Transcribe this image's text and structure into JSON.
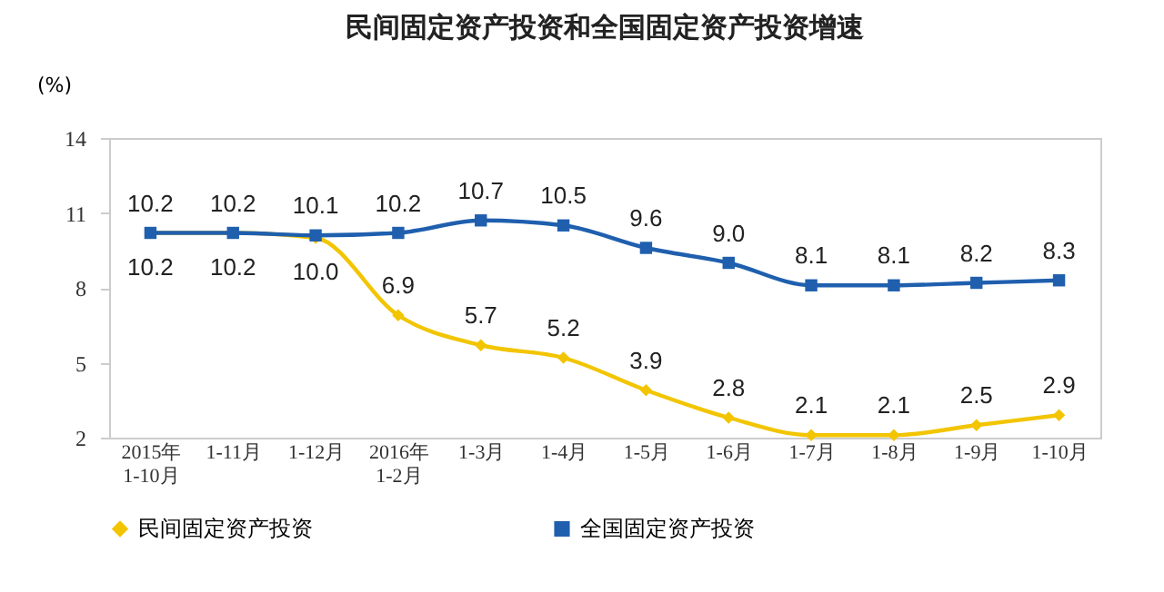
{
  "chart_data": {
    "type": "line",
    "title": "民间固定资产投资和全国固定资产投资增速",
    "ylabel": "(%)",
    "categories": [
      "2015年\n1-10月",
      "1-11月",
      "1-12月",
      "2016年\n1-2月",
      "1-3月",
      "1-4月",
      "1-5月",
      "1-6月",
      "1-7月",
      "1-8月",
      "1-9月",
      "1-10月"
    ],
    "series": [
      {
        "name": "民间固定资产投资",
        "color": "#f2c500",
        "marker": "diamond",
        "values": [
          10.2,
          10.2,
          10.0,
          6.9,
          5.7,
          5.2,
          3.9,
          2.8,
          2.1,
          2.1,
          2.5,
          2.9
        ],
        "value_labels": [
          "10.2",
          "10.2",
          "10.0",
          "6.9",
          "5.7",
          "5.2",
          "3.9",
          "2.8",
          "2.1",
          "2.1",
          "2.5",
          "2.9"
        ]
      },
      {
        "name": "全国固定资产投资",
        "color": "#1f5fae",
        "marker": "square",
        "values": [
          10.2,
          10.2,
          10.1,
          10.2,
          10.7,
          10.5,
          9.6,
          9.0,
          8.1,
          8.1,
          8.2,
          8.3
        ],
        "value_labels": [
          "10.2",
          "10.2",
          "10.1",
          "10.2",
          "10.7",
          "10.5",
          "9.6",
          "9.0",
          "8.1",
          "8.1",
          "8.2",
          "8.3"
        ]
      }
    ],
    "ylim": [
      2,
      14
    ],
    "yticks": [
      2,
      5,
      8,
      11,
      14
    ],
    "grid": false,
    "legend": "bottom"
  }
}
